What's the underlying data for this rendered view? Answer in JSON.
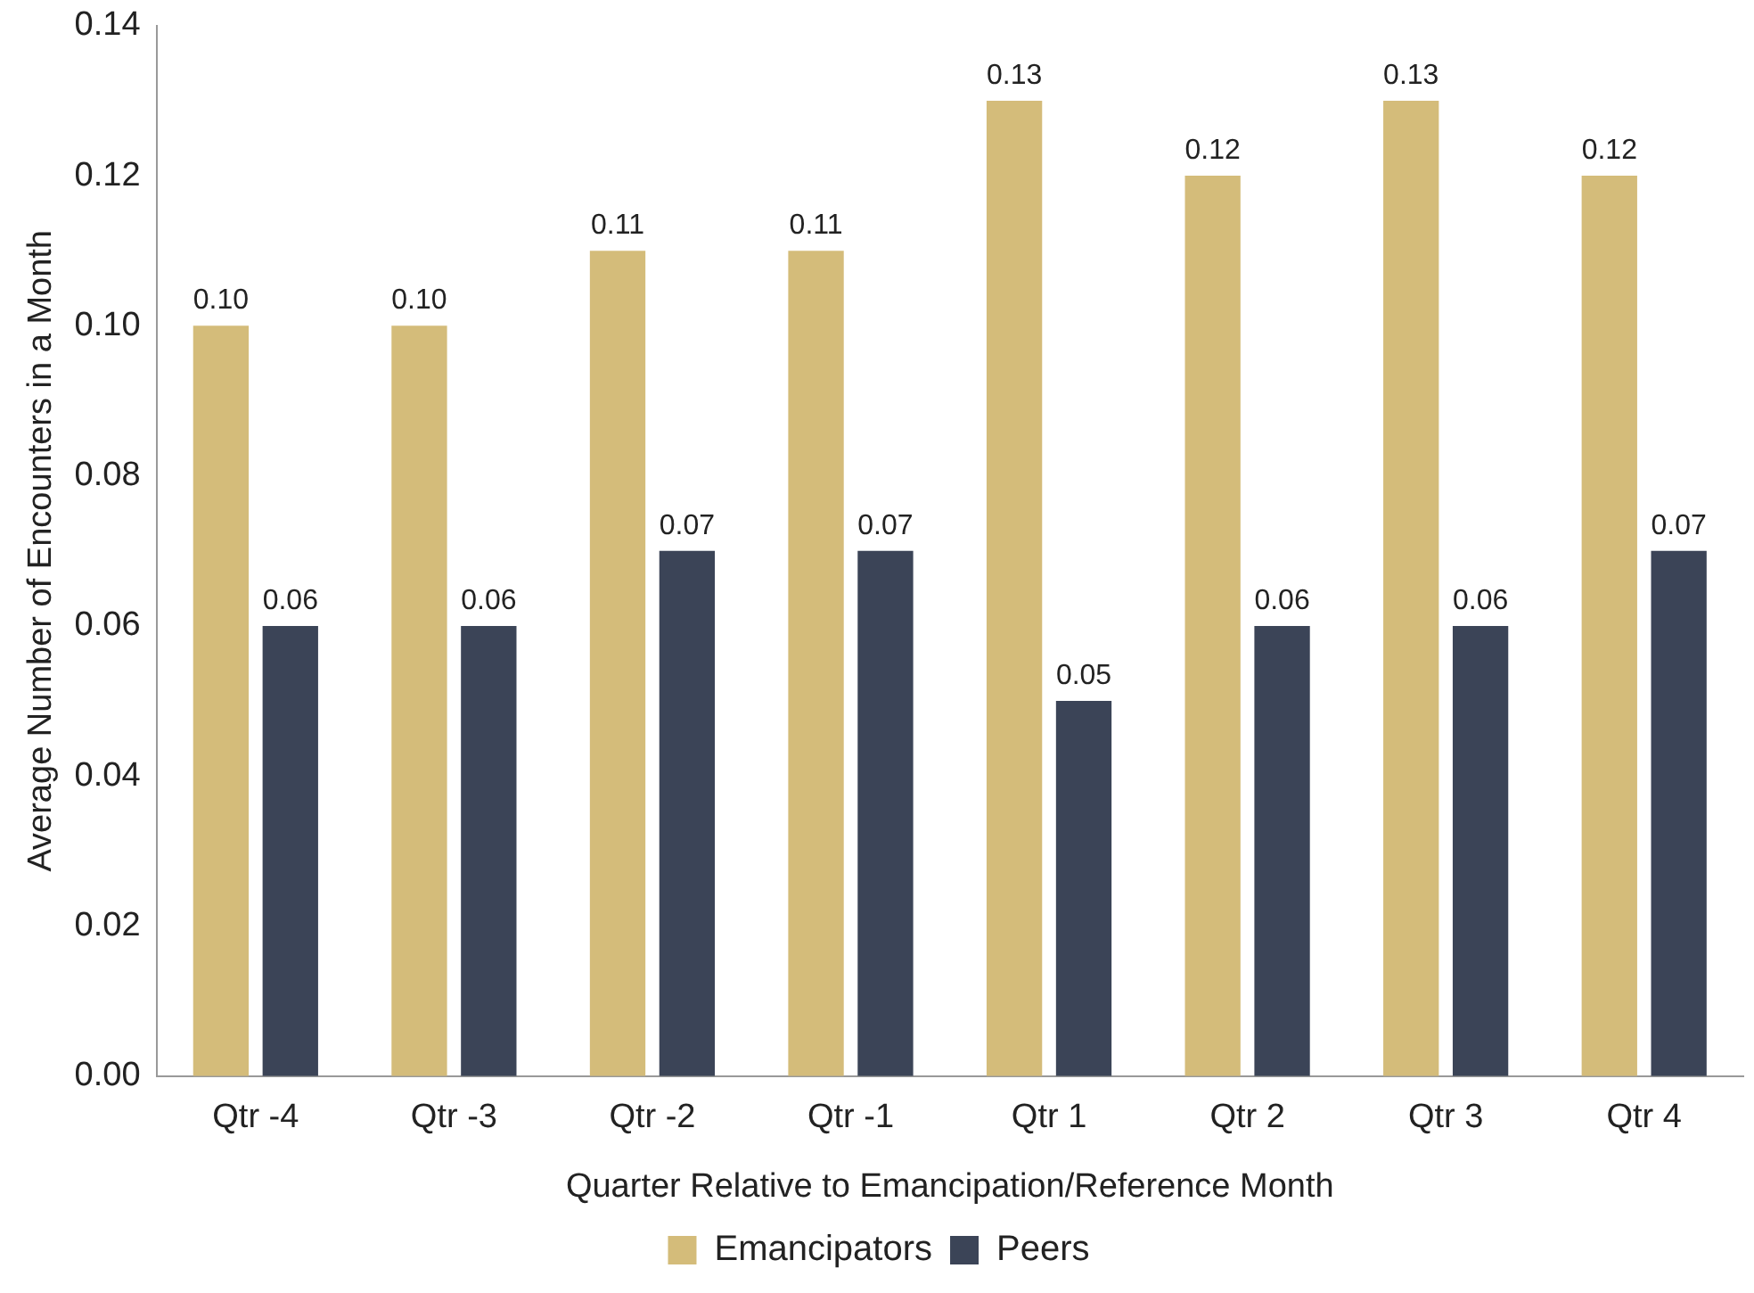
{
  "chart_data": {
    "type": "bar",
    "xlabel": "Quarter Relative to Emancipation/Reference Month",
    "ylabel": "Average Number of Encounters in a Month",
    "categories": [
      "Qtr -4",
      "Qtr -3",
      "Qtr -2",
      "Qtr -1",
      "Qtr 1",
      "Qtr 2",
      "Qtr 3",
      "Qtr 4"
    ],
    "series": [
      {
        "name": "Emancipators",
        "color": "#d4bc7a",
        "values": [
          0.1,
          0.1,
          0.11,
          0.11,
          0.13,
          0.12,
          0.13,
          0.12
        ]
      },
      {
        "name": "Peers",
        "color": "#3b4457",
        "values": [
          0.06,
          0.06,
          0.07,
          0.07,
          0.05,
          0.06,
          0.06,
          0.07
        ]
      }
    ],
    "ylim": [
      0,
      0.14
    ],
    "yticks": [
      {
        "value": 0,
        "label": "0.00"
      },
      {
        "value": 0.02,
        "label": "0.02"
      },
      {
        "value": 0.04,
        "label": "0.04"
      },
      {
        "value": 0.06,
        "label": "0.06"
      },
      {
        "value": 0.08,
        "label": "0.08"
      },
      {
        "value": 0.1,
        "label": "0.10"
      },
      {
        "value": 0.12,
        "label": "0.12"
      },
      {
        "value": 0.14,
        "label": "0.14"
      }
    ],
    "value_labels": [
      [
        "0.10",
        "0.10",
        "0.11",
        "0.11",
        "0.13",
        "0.12",
        "0.13",
        "0.12"
      ],
      [
        "0.06",
        "0.06",
        "0.07",
        "0.07",
        "0.05",
        "0.06",
        "0.06",
        "0.07"
      ]
    ],
    "grid": false,
    "legend": "bottom"
  }
}
